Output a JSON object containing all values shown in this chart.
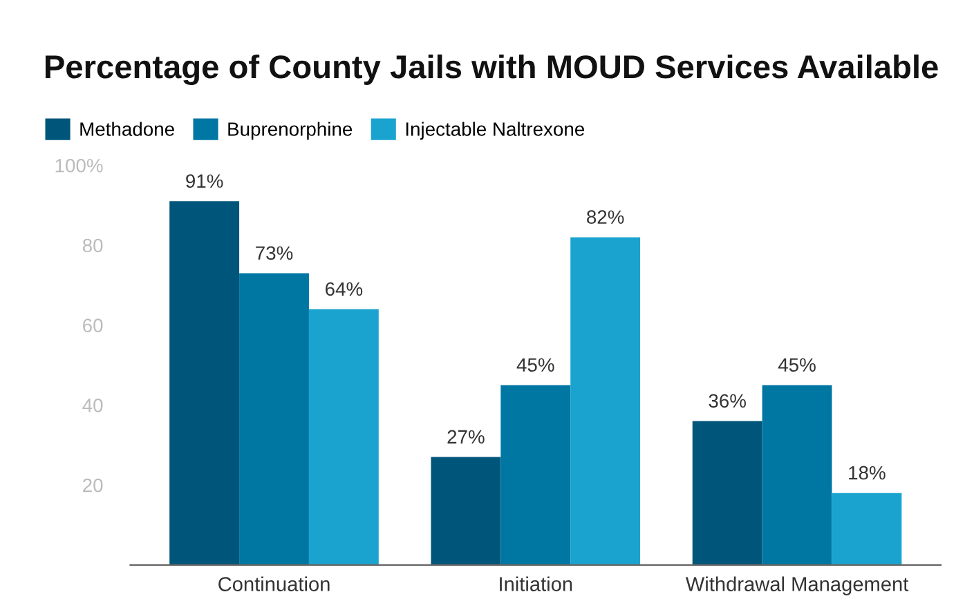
{
  "chart_data": {
    "type": "bar",
    "title": "Percentage of County Jails with MOUD Services Available",
    "categories": [
      "Continuation",
      "Initiation",
      "Withdrawal Management"
    ],
    "series": [
      {
        "name": "Methadone",
        "color": "#00557a",
        "values": [
          91,
          27,
          36
        ],
        "value_labels": [
          "91%",
          "27%",
          "36%"
        ]
      },
      {
        "name": "Buprenorphine",
        "color": "#0077a3",
        "values": [
          73,
          45,
          45
        ],
        "value_labels": [
          "73%",
          "45%",
          "45%"
        ]
      },
      {
        "name": "Injectable Naltrexone",
        "color": "#1ba3d0",
        "values": [
          64,
          82,
          18
        ],
        "value_labels": [
          "64%",
          "82%",
          "18%"
        ]
      }
    ],
    "ylim": [
      0,
      100
    ],
    "yticks": [
      20,
      40,
      60,
      80,
      {
        "value": 100,
        "label": "100%"
      }
    ],
    "grid": false,
    "legend": "top left"
  }
}
